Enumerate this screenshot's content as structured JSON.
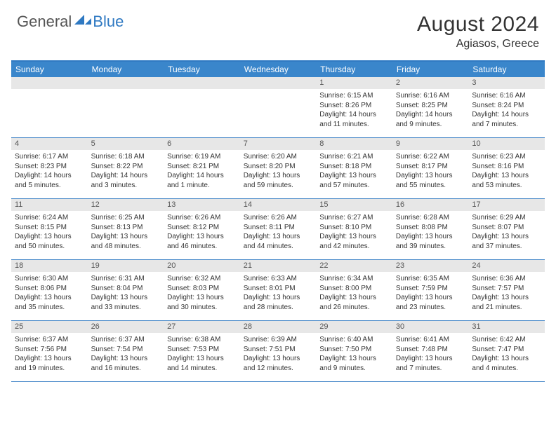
{
  "logo": {
    "text1": "General",
    "text2": "Blue",
    "mark_color": "#2f79c2",
    "text1_color": "#555555"
  },
  "title": "August 2024",
  "location": "Agiasos, Greece",
  "colors": {
    "header_bar": "#3a86cb",
    "border": "#2f79c2",
    "daynum_bg": "#e7e7e7",
    "text": "#333333"
  },
  "day_names": [
    "Sunday",
    "Monday",
    "Tuesday",
    "Wednesday",
    "Thursday",
    "Friday",
    "Saturday"
  ],
  "weeks": [
    [
      {
        "n": "",
        "sr": "",
        "ss": "",
        "dl": ""
      },
      {
        "n": "",
        "sr": "",
        "ss": "",
        "dl": ""
      },
      {
        "n": "",
        "sr": "",
        "ss": "",
        "dl": ""
      },
      {
        "n": "",
        "sr": "",
        "ss": "",
        "dl": ""
      },
      {
        "n": "1",
        "sr": "Sunrise: 6:15 AM",
        "ss": "Sunset: 8:26 PM",
        "dl": "Daylight: 14 hours and 11 minutes."
      },
      {
        "n": "2",
        "sr": "Sunrise: 6:16 AM",
        "ss": "Sunset: 8:25 PM",
        "dl": "Daylight: 14 hours and 9 minutes."
      },
      {
        "n": "3",
        "sr": "Sunrise: 6:16 AM",
        "ss": "Sunset: 8:24 PM",
        "dl": "Daylight: 14 hours and 7 minutes."
      }
    ],
    [
      {
        "n": "4",
        "sr": "Sunrise: 6:17 AM",
        "ss": "Sunset: 8:23 PM",
        "dl": "Daylight: 14 hours and 5 minutes."
      },
      {
        "n": "5",
        "sr": "Sunrise: 6:18 AM",
        "ss": "Sunset: 8:22 PM",
        "dl": "Daylight: 14 hours and 3 minutes."
      },
      {
        "n": "6",
        "sr": "Sunrise: 6:19 AM",
        "ss": "Sunset: 8:21 PM",
        "dl": "Daylight: 14 hours and 1 minute."
      },
      {
        "n": "7",
        "sr": "Sunrise: 6:20 AM",
        "ss": "Sunset: 8:20 PM",
        "dl": "Daylight: 13 hours and 59 minutes."
      },
      {
        "n": "8",
        "sr": "Sunrise: 6:21 AM",
        "ss": "Sunset: 8:18 PM",
        "dl": "Daylight: 13 hours and 57 minutes."
      },
      {
        "n": "9",
        "sr": "Sunrise: 6:22 AM",
        "ss": "Sunset: 8:17 PM",
        "dl": "Daylight: 13 hours and 55 minutes."
      },
      {
        "n": "10",
        "sr": "Sunrise: 6:23 AM",
        "ss": "Sunset: 8:16 PM",
        "dl": "Daylight: 13 hours and 53 minutes."
      }
    ],
    [
      {
        "n": "11",
        "sr": "Sunrise: 6:24 AM",
        "ss": "Sunset: 8:15 PM",
        "dl": "Daylight: 13 hours and 50 minutes."
      },
      {
        "n": "12",
        "sr": "Sunrise: 6:25 AM",
        "ss": "Sunset: 8:13 PM",
        "dl": "Daylight: 13 hours and 48 minutes."
      },
      {
        "n": "13",
        "sr": "Sunrise: 6:26 AM",
        "ss": "Sunset: 8:12 PM",
        "dl": "Daylight: 13 hours and 46 minutes."
      },
      {
        "n": "14",
        "sr": "Sunrise: 6:26 AM",
        "ss": "Sunset: 8:11 PM",
        "dl": "Daylight: 13 hours and 44 minutes."
      },
      {
        "n": "15",
        "sr": "Sunrise: 6:27 AM",
        "ss": "Sunset: 8:10 PM",
        "dl": "Daylight: 13 hours and 42 minutes."
      },
      {
        "n": "16",
        "sr": "Sunrise: 6:28 AM",
        "ss": "Sunset: 8:08 PM",
        "dl": "Daylight: 13 hours and 39 minutes."
      },
      {
        "n": "17",
        "sr": "Sunrise: 6:29 AM",
        "ss": "Sunset: 8:07 PM",
        "dl": "Daylight: 13 hours and 37 minutes."
      }
    ],
    [
      {
        "n": "18",
        "sr": "Sunrise: 6:30 AM",
        "ss": "Sunset: 8:06 PM",
        "dl": "Daylight: 13 hours and 35 minutes."
      },
      {
        "n": "19",
        "sr": "Sunrise: 6:31 AM",
        "ss": "Sunset: 8:04 PM",
        "dl": "Daylight: 13 hours and 33 minutes."
      },
      {
        "n": "20",
        "sr": "Sunrise: 6:32 AM",
        "ss": "Sunset: 8:03 PM",
        "dl": "Daylight: 13 hours and 30 minutes."
      },
      {
        "n": "21",
        "sr": "Sunrise: 6:33 AM",
        "ss": "Sunset: 8:01 PM",
        "dl": "Daylight: 13 hours and 28 minutes."
      },
      {
        "n": "22",
        "sr": "Sunrise: 6:34 AM",
        "ss": "Sunset: 8:00 PM",
        "dl": "Daylight: 13 hours and 26 minutes."
      },
      {
        "n": "23",
        "sr": "Sunrise: 6:35 AM",
        "ss": "Sunset: 7:59 PM",
        "dl": "Daylight: 13 hours and 23 minutes."
      },
      {
        "n": "24",
        "sr": "Sunrise: 6:36 AM",
        "ss": "Sunset: 7:57 PM",
        "dl": "Daylight: 13 hours and 21 minutes."
      }
    ],
    [
      {
        "n": "25",
        "sr": "Sunrise: 6:37 AM",
        "ss": "Sunset: 7:56 PM",
        "dl": "Daylight: 13 hours and 19 minutes."
      },
      {
        "n": "26",
        "sr": "Sunrise: 6:37 AM",
        "ss": "Sunset: 7:54 PM",
        "dl": "Daylight: 13 hours and 16 minutes."
      },
      {
        "n": "27",
        "sr": "Sunrise: 6:38 AM",
        "ss": "Sunset: 7:53 PM",
        "dl": "Daylight: 13 hours and 14 minutes."
      },
      {
        "n": "28",
        "sr": "Sunrise: 6:39 AM",
        "ss": "Sunset: 7:51 PM",
        "dl": "Daylight: 13 hours and 12 minutes."
      },
      {
        "n": "29",
        "sr": "Sunrise: 6:40 AM",
        "ss": "Sunset: 7:50 PM",
        "dl": "Daylight: 13 hours and 9 minutes."
      },
      {
        "n": "30",
        "sr": "Sunrise: 6:41 AM",
        "ss": "Sunset: 7:48 PM",
        "dl": "Daylight: 13 hours and 7 minutes."
      },
      {
        "n": "31",
        "sr": "Sunrise: 6:42 AM",
        "ss": "Sunset: 7:47 PM",
        "dl": "Daylight: 13 hours and 4 minutes."
      }
    ]
  ]
}
